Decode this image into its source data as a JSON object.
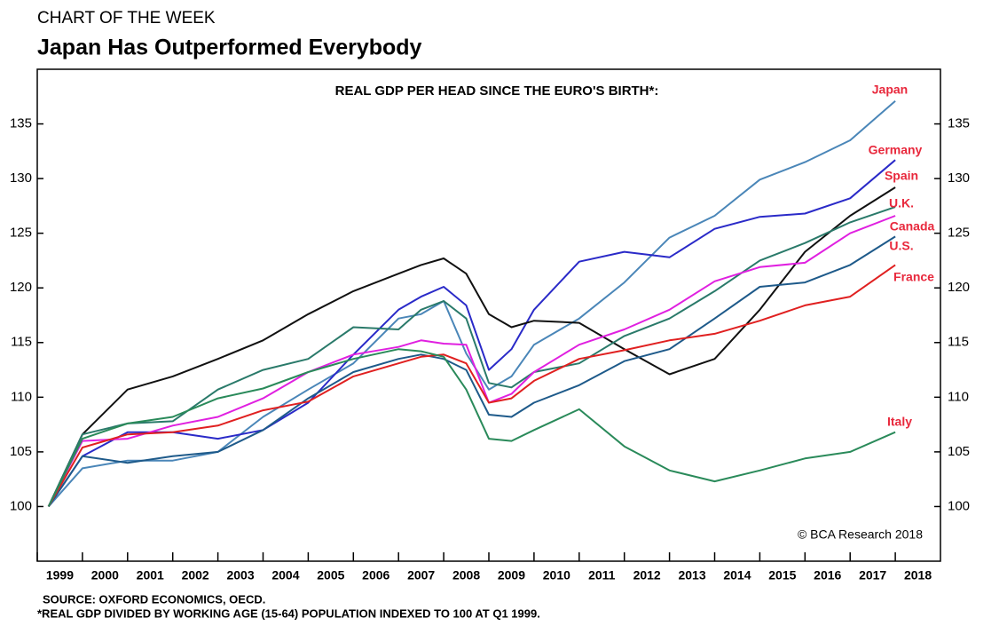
{
  "header": {
    "kicker": "CHART OF THE WEEK",
    "title": "Japan Has Outperformed Everybody"
  },
  "chart_data": {
    "type": "line",
    "title": "REAL GDP PER HEAD SINCE THE EURO'S BIRTH*:",
    "credit": "© BCA Research 2018",
    "x": [
      1999.25,
      2000,
      2001,
      2002,
      2003,
      2004,
      2005,
      2006,
      2007,
      2007.5,
      2008,
      2008.5,
      2009,
      2009.5,
      2010,
      2011,
      2012,
      2013,
      2014,
      2015,
      2016,
      2017,
      2018
    ],
    "xlim": [
      1999,
      2019
    ],
    "xticks": [
      1999,
      2000,
      2001,
      2002,
      2003,
      2004,
      2005,
      2006,
      2007,
      2008,
      2009,
      2010,
      2011,
      2012,
      2013,
      2014,
      2015,
      2016,
      2017,
      2018
    ],
    "ylim": [
      95,
      140
    ],
    "yticks": [
      100,
      105,
      110,
      115,
      120,
      125,
      130,
      135
    ],
    "grid": false,
    "series": [
      {
        "name": "Japan",
        "color": "#4a86b8",
        "values": [
          100,
          103.5,
          104.2,
          104.2,
          105,
          108.2,
          110.7,
          113.1,
          117.2,
          117.6,
          118.8,
          114,
          110.7,
          111.9,
          114.8,
          117.2,
          120.5,
          124.6,
          126.6,
          129.9,
          131.5,
          133.5,
          137.1
        ]
      },
      {
        "name": "Germany",
        "color": "#2a2ac8",
        "values": [
          100,
          104.6,
          106.8,
          106.8,
          106.2,
          107,
          109.5,
          113.9,
          118,
          119.2,
          120.1,
          118.4,
          112.5,
          114.4,
          118,
          122.4,
          123.3,
          122.8,
          125.4,
          126.5,
          126.8,
          128.2,
          131.7
        ]
      },
      {
        "name": "Spain",
        "color": "#111111",
        "values": [
          100,
          106.6,
          110.7,
          111.9,
          113.5,
          115.2,
          117.6,
          119.7,
          121.3,
          122.1,
          122.7,
          121.3,
          117.6,
          116.4,
          117,
          116.8,
          114.4,
          112.1,
          113.5,
          118,
          123.3,
          126.6,
          129.2
        ]
      },
      {
        "name": "U.K.",
        "color": "#2a7a6a",
        "values": [
          100,
          106.6,
          107.6,
          107.8,
          110.7,
          112.5,
          113.5,
          116.4,
          116.2,
          118,
          118.8,
          117.2,
          111.3,
          110.9,
          112.3,
          113.1,
          115.6,
          117.2,
          119.7,
          122.5,
          124.1,
          126,
          127.4
        ]
      },
      {
        "name": "Canada",
        "color": "#e020e0",
        "values": [
          100,
          106,
          106.2,
          107.4,
          108.2,
          109.9,
          112.3,
          113.9,
          114.6,
          115.2,
          114.9,
          114.8,
          109.5,
          110.3,
          112.3,
          114.8,
          116.2,
          118,
          120.6,
          121.9,
          122.3,
          125,
          126.6
        ]
      },
      {
        "name": "U.S.",
        "color": "#1e5a8a",
        "values": [
          100,
          104.6,
          104,
          104.6,
          105,
          107,
          109.9,
          112.3,
          113.5,
          113.9,
          113.5,
          112.5,
          108.4,
          108.2,
          109.5,
          111.1,
          113.3,
          114.4,
          117.2,
          120.1,
          120.5,
          122.1,
          124.7
        ]
      },
      {
        "name": "France",
        "color": "#e02020",
        "values": [
          100,
          105.4,
          106.6,
          106.8,
          107.4,
          108.8,
          109.6,
          111.9,
          113.1,
          113.7,
          113.9,
          113.1,
          109.5,
          109.9,
          111.5,
          113.5,
          114.3,
          115.2,
          115.8,
          117,
          118.4,
          119.2,
          122.1
        ]
      },
      {
        "name": "Italy",
        "color": "#2a8a5a",
        "values": [
          100,
          106.2,
          107.6,
          108.2,
          109.9,
          110.8,
          112.3,
          113.5,
          114.4,
          114.2,
          113.7,
          110.7,
          106.2,
          106,
          107,
          108.9,
          105.5,
          103.3,
          102.3,
          103.3,
          104.4,
          105,
          106.8
        ]
      }
    ]
  },
  "footer": {
    "source": "SOURCE: OXFORD ECONOMICS, OECD.",
    "note": "*REAL GDP DIVIDED BY WORKING AGE (15-64) POPULATION INDEXED TO 100 AT Q1 1999."
  }
}
